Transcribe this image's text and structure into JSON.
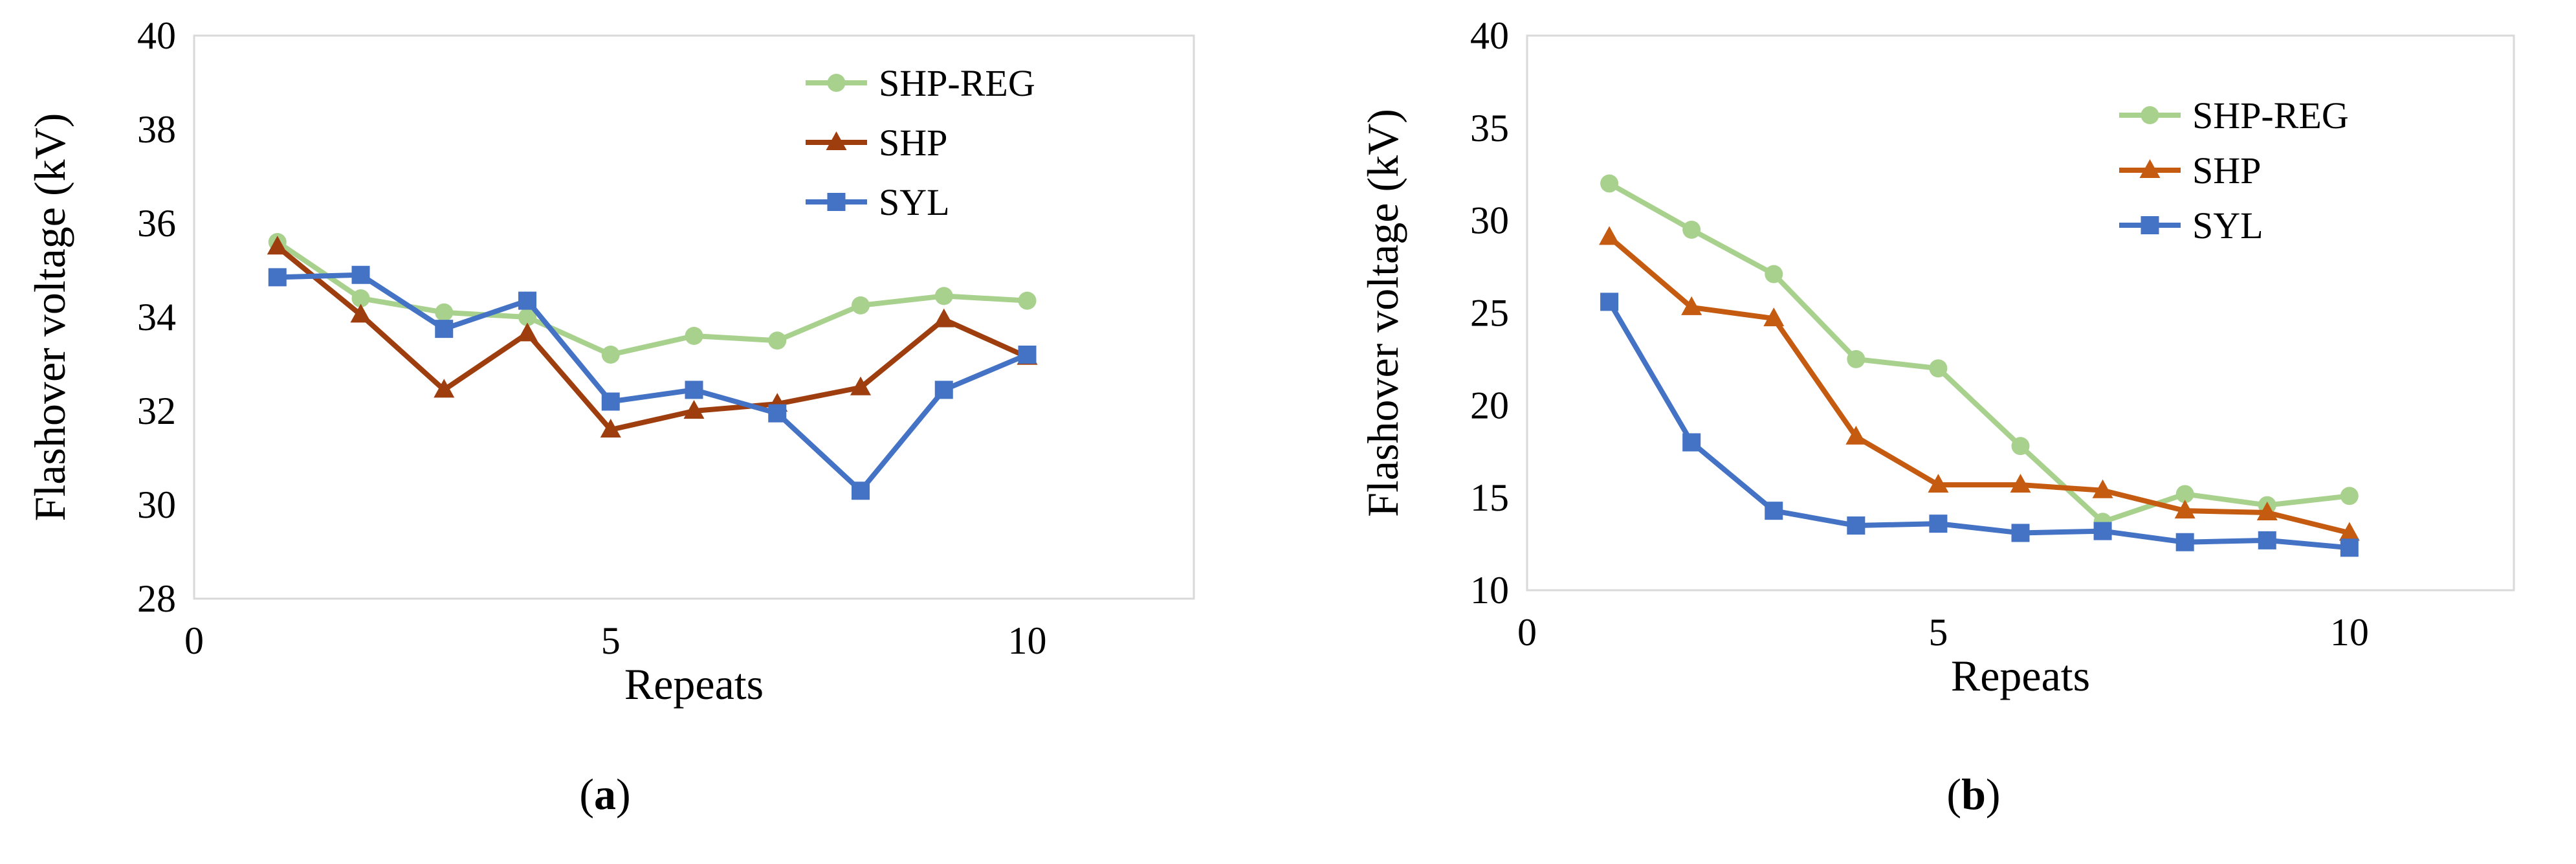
{
  "chart_data": [
    {
      "type": "line",
      "caption": {
        "open": "(",
        "letter": "a",
        "close": ")"
      },
      "xlabel": "Repeats",
      "ylabel": "Flashover voltage (kV)",
      "xlim": [
        0,
        12
      ],
      "ylim": [
        28,
        40
      ],
      "xticks": [
        0,
        5,
        10
      ],
      "yticks": [
        28,
        30,
        32,
        34,
        36,
        38,
        40
      ],
      "grid": false,
      "legend_position": "top-right",
      "x": [
        1,
        2,
        3,
        4,
        5,
        6,
        7,
        8,
        9,
        10
      ],
      "series": [
        {
          "name": "SHP-REG",
          "color": "#a9d18e",
          "marker": "circle",
          "values": [
            35.6,
            34.4,
            34.1,
            34.0,
            33.2,
            33.6,
            33.5,
            34.25,
            34.45,
            34.35
          ]
        },
        {
          "name": "SHP",
          "color": "#9e3d0e",
          "marker": "triangle",
          "values": [
            35.5,
            34.05,
            32.45,
            33.65,
            31.6,
            32.0,
            32.15,
            32.5,
            33.95,
            33.15
          ]
        },
        {
          "name": "SYL",
          "color": "#4472c4",
          "marker": "square",
          "values": [
            34.85,
            34.9,
            33.75,
            34.35,
            32.2,
            32.45,
            31.95,
            30.3,
            32.45,
            33.2
          ]
        }
      ]
    },
    {
      "type": "line",
      "caption": {
        "open": "(",
        "letter": "b",
        "close": ")"
      },
      "xlabel": "Repeats",
      "ylabel": "Flashover voltage (kV)",
      "xlim": [
        0,
        12
      ],
      "ylim": [
        10,
        40
      ],
      "xticks": [
        0,
        5,
        10
      ],
      "yticks": [
        10,
        15,
        20,
        25,
        30,
        35,
        40
      ],
      "grid": false,
      "legend_position": "top-right",
      "x": [
        1,
        2,
        3,
        4,
        5,
        6,
        7,
        8,
        9,
        10
      ],
      "series": [
        {
          "name": "SHP-REG",
          "color": "#a9d18e",
          "marker": "circle",
          "values": [
            32.0,
            29.5,
            27.1,
            22.5,
            22.0,
            17.8,
            13.7,
            15.2,
            14.6,
            15.1
          ]
        },
        {
          "name": "SHP",
          "color": "#c55a11",
          "marker": "triangle",
          "values": [
            29.1,
            25.3,
            24.7,
            18.3,
            15.7,
            15.7,
            15.4,
            14.3,
            14.2,
            13.1
          ]
        },
        {
          "name": "SYL",
          "color": "#4472c4",
          "marker": "square",
          "values": [
            25.6,
            18.0,
            14.3,
            13.5,
            13.6,
            13.1,
            13.2,
            12.6,
            12.7,
            12.3
          ]
        }
      ]
    }
  ]
}
